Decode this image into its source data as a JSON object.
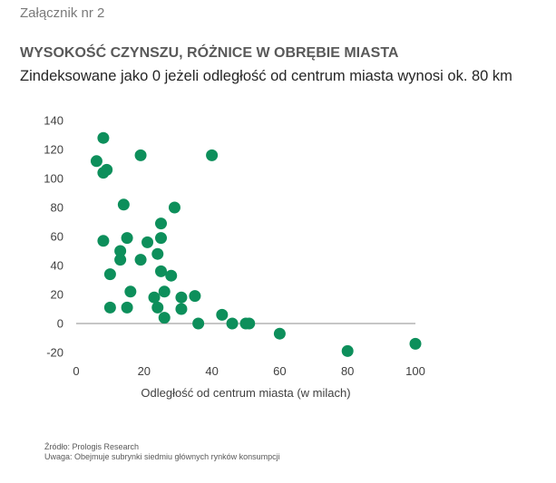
{
  "annex_label": "Załącznik nr 2",
  "chart_data": {
    "type": "scatter",
    "title": "WYSOKOŚĆ CZYNSZU, RÓŻNICE W OBRĘBIE MIASTA",
    "subtitle": "Zindeksowane jako 0 jeżeli odległość od centrum miasta wynosi ok. 80 km",
    "xlabel": "Odległość od centrum miasta (w milach)",
    "ylabel": "",
    "xlim": [
      0,
      100
    ],
    "ylim": [
      -20,
      140
    ],
    "x_ticks": [
      0,
      20,
      40,
      60,
      80,
      100
    ],
    "y_ticks": [
      -20,
      0,
      20,
      40,
      60,
      80,
      100,
      120,
      140
    ],
    "grid": false,
    "color": "#0d8f5b",
    "points": [
      {
        "x": 6,
        "y": 112
      },
      {
        "x": 8,
        "y": 128
      },
      {
        "x": 8,
        "y": 104
      },
      {
        "x": 9,
        "y": 106
      },
      {
        "x": 8,
        "y": 57
      },
      {
        "x": 10,
        "y": 34
      },
      {
        "x": 10,
        "y": 11
      },
      {
        "x": 13,
        "y": 50
      },
      {
        "x": 13,
        "y": 44
      },
      {
        "x": 14,
        "y": 82
      },
      {
        "x": 15,
        "y": 59
      },
      {
        "x": 15,
        "y": 11
      },
      {
        "x": 16,
        "y": 22
      },
      {
        "x": 19,
        "y": 116
      },
      {
        "x": 19,
        "y": 44
      },
      {
        "x": 21,
        "y": 56
      },
      {
        "x": 23,
        "y": 18
      },
      {
        "x": 24,
        "y": 11
      },
      {
        "x": 24,
        "y": 48
      },
      {
        "x": 25,
        "y": 69
      },
      {
        "x": 25,
        "y": 59
      },
      {
        "x": 25,
        "y": 36
      },
      {
        "x": 26,
        "y": 22
      },
      {
        "x": 26,
        "y": 4
      },
      {
        "x": 28,
        "y": 33
      },
      {
        "x": 29,
        "y": 80
      },
      {
        "x": 31,
        "y": 18
      },
      {
        "x": 31,
        "y": 10
      },
      {
        "x": 35,
        "y": 19
      },
      {
        "x": 36,
        "y": 0
      },
      {
        "x": 40,
        "y": 116
      },
      {
        "x": 43,
        "y": 6
      },
      {
        "x": 46,
        "y": 0
      },
      {
        "x": 50,
        "y": 0
      },
      {
        "x": 51,
        "y": 0
      },
      {
        "x": 60,
        "y": -7
      },
      {
        "x": 80,
        "y": -19
      },
      {
        "x": 100,
        "y": -14
      }
    ]
  },
  "footer": {
    "source": "Źródło: Prologis Research",
    "note": "Uwaga: Obejmuje subrynki siedmiu głównych rynków konsumpcji"
  }
}
